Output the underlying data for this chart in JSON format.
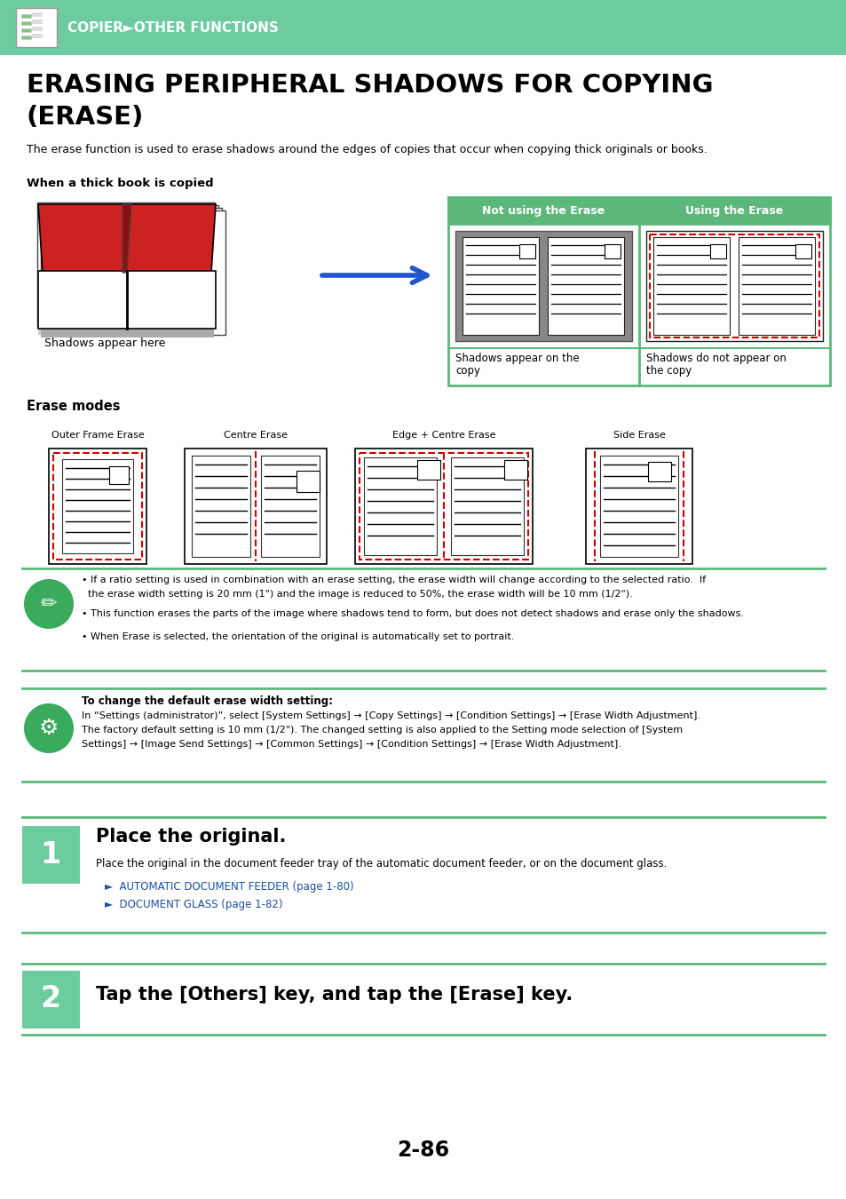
{
  "header_bg": "#6dcba0",
  "header_text": "COPIER►OTHER FUNCTIONS",
  "header_text_color": "#ffffff",
  "title_line1": "ERASING PERIPHERAL SHADOWS FOR COPYING",
  "title_line2": "(ERASE)",
  "body_bg": "#ffffff",
  "description": "The erase function is used to erase shadows around the edges of copies that occur when copying thick originals or books.",
  "bold_label": "When a thick book is copied",
  "table_header_bg": "#5cb87a",
  "table_header_text_color": "#ffffff",
  "table_col1": "Not using the Erase",
  "table_col2": "Using the Erase",
  "table_border": "#5cb87a",
  "shadow_label": "Shadows appear here",
  "shadow_copy_label1": "Shadows appear on the",
  "shadow_copy_label2": "copy",
  "no_shadow_label1": "Shadows do not appear on",
  "no_shadow_label2": "the copy",
  "erase_modes_label": "Erase modes",
  "mode_labels": [
    "Outer Frame Erase",
    "Centre Erase",
    "Edge + Centre Erase",
    "Side Erase"
  ],
  "note_text1a": "• If a ratio setting is used in combination with an erase setting, the erase width will change according to the selected ratio.  If",
  "note_text1b": "  the erase width setting is 20 mm (1\") and the image is reduced to 50%, the erase width will be 10 mm (1/2\").",
  "note_text2": "• This function erases the parts of the image where shadows tend to form, but does not detect shadows and erase only the shadows.",
  "note_text3": "• When Erase is selected, the orientation of the original is automatically set to portrait.",
  "settings_label_bold": "To change the default erase width setting:",
  "settings_line1": "In “Settings (administrator)”, select [System Settings] → [Copy Settings] → [Condition Settings] → [Erase Width Adjustment].",
  "settings_line2": "The factory default setting is 10 mm (1/2\"). The changed setting is also applied to the Setting mode selection of [System",
  "settings_line3": "Settings] → [Image Send Settings] → [Common Settings] → [Condition Settings] → [Erase Width Adjustment].",
  "step1_num": "1",
  "step1_title": "Place the original.",
  "step1_text": "Place the original in the document feeder tray of the automatic document feeder, or on the document glass.",
  "step1_link1": "AUTOMATIC DOCUMENT FEEDER (page 1-80)",
  "step1_link2": "DOCUMENT GLASS (page 1-82)",
  "step2_num": "2",
  "step2_title": "Tap the [Others] key, and tap the [Erase] key.",
  "step_bg": "#6dcba0",
  "step_text_color": "#ffffff",
  "page_number": "2-86",
  "link_color": "#1a4f9f",
  "green_color": "#5cb87a",
  "green_icon_bg": "#3aaa5c"
}
